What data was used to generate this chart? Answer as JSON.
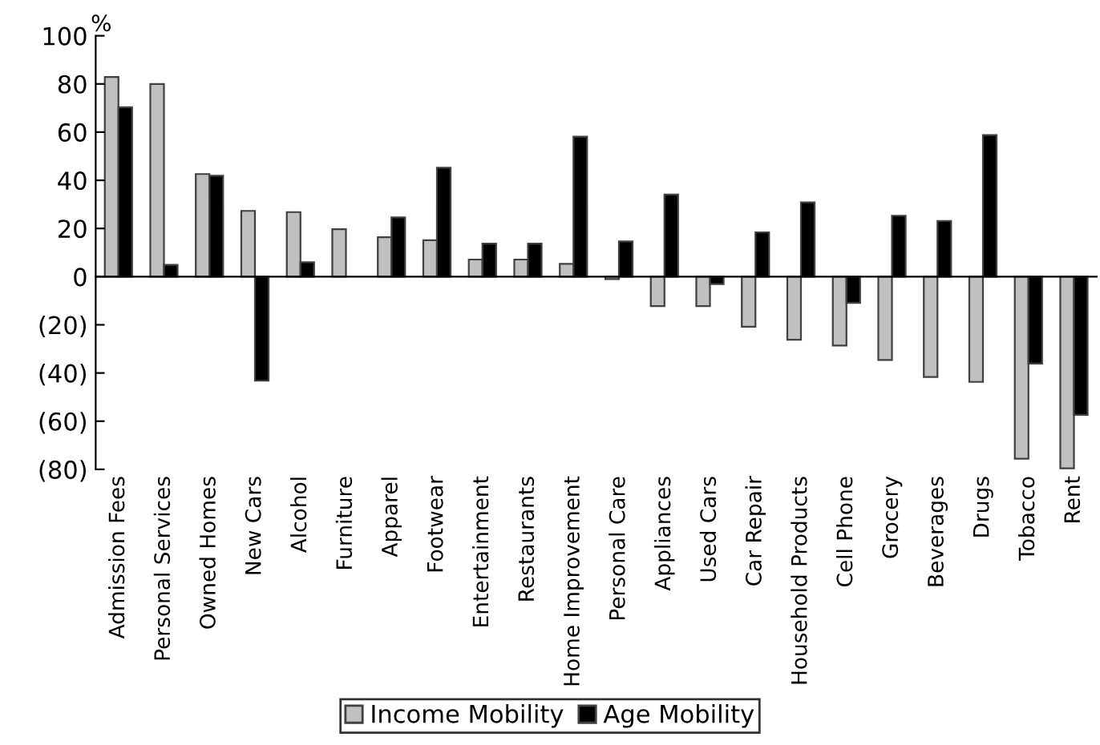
{
  "chart_data": {
    "type": "bar",
    "ylabel": "%",
    "categories": [
      "Admission Fees",
      "Personal Services",
      "Owned Homes",
      "New Cars",
      "Alcohol",
      "Furniture",
      "Apparel",
      "Footwear",
      "Entertainment",
      "Restaurants",
      "Home Improvement",
      "Personal Care",
      "Appliances",
      "Used Cars",
      "Car Repair",
      "Household Products",
      "Cell Phone",
      "Grocery",
      "Beverages",
      "Drugs",
      "Tobacco",
      "Rent"
    ],
    "series": [
      {
        "name": "Income Mobility",
        "color": "#c0c0c0",
        "values": [
          82.9,
          80,
          42.6,
          27.3,
          26.8,
          19.7,
          16.4,
          15.1,
          7.1,
          7.1,
          5.3,
          -1,
          -12.2,
          -12.2,
          -20.8,
          -26.2,
          -28.6,
          -34.6,
          -41.7,
          -43.7,
          -75.6,
          -79.6
        ]
      },
      {
        "name": "Age Mobility",
        "color": "#000000",
        "values": [
          70.3,
          4.9,
          41.9,
          -43.2,
          6,
          null,
          24.6,
          45.2,
          13.7,
          13.7,
          58.1,
          14.6,
          34.1,
          -3.1,
          18.4,
          30.8,
          -10.9,
          25.3,
          23.1,
          58.8,
          -36.1,
          -57.4
        ]
      }
    ],
    "ylim": [
      -80,
      100
    ],
    "yticks": [
      {
        "value": -80,
        "label": "(80)"
      },
      {
        "value": -60,
        "label": "(60)"
      },
      {
        "value": -40,
        "label": "(40)"
      },
      {
        "value": -20,
        "label": "(20)"
      },
      0,
      20,
      40,
      60,
      80,
      100
    ],
    "legend": "bottom"
  }
}
